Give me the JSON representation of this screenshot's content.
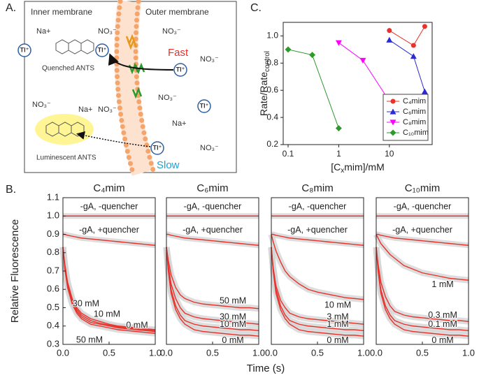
{
  "panel_labels": [
    "A.",
    "B.",
    "C."
  ],
  "diagram": {
    "inner_membrane": "Inner membrane",
    "outer_membrane": "Outer membrane",
    "fast": "Fast",
    "slow": "Slow",
    "quenched": "Quenched ANTS",
    "luminescent": "Luminescent ANTS",
    "na": [
      "Na+",
      "Na+",
      "Na+"
    ],
    "no3": [
      "NO₃⁻",
      "NO₃⁻",
      "NO₃⁻",
      "NO₃⁻",
      "NO₃⁻",
      "NO₃⁻",
      "NO₃⁻"
    ],
    "tl": [
      "Tl⁺",
      "Tl⁺",
      "Tl⁺",
      "Tl⁺",
      "Tl⁺"
    ]
  },
  "panel_b": {
    "ylabel": "Relative Fluorescence",
    "xlabel": "Time (s)"
  },
  "chart_data": [
    {
      "type": "line",
      "xscale": "log",
      "xlabel": [
        "[C",
        "x",
        "mim]/mM"
      ],
      "ylabel": [
        "Rate/Rate",
        "control"
      ],
      "xlim": [
        0.08,
        70
      ],
      "ylim": [
        0.2,
        1.1
      ],
      "xticks": [
        0.1,
        1,
        10
      ],
      "yticks": [
        0.2,
        0.4,
        0.6,
        0.8,
        {
          "value": 1,
          "label": "1.0"
        }
      ],
      "legend": "lower right",
      "series": [
        {
          "name": "C₄mim",
          "color": "#e8322b",
          "marker": "circle",
          "x": [
            10,
            30,
            50
          ],
          "values": [
            1.04,
            0.93,
            1.07
          ]
        },
        {
          "name": "C₆mim",
          "color": "#2a2ad6",
          "marker": "triangle-up",
          "x": [
            10,
            30,
            50
          ],
          "values": [
            0.97,
            0.85,
            0.59
          ]
        },
        {
          "name": "C₈mim",
          "color": "#ff00ff",
          "marker": "triangle-down",
          "x": [
            1,
            3,
            10
          ],
          "values": [
            0.95,
            0.82,
            0.52
          ]
        },
        {
          "name": "C₁₀mim",
          "color": "#2e9a2e",
          "marker": "diamond",
          "x": [
            0.1,
            0.3,
            1
          ],
          "values": [
            0.9,
            0.86,
            0.32
          ]
        }
      ]
    },
    {
      "type": "decay",
      "title": "C₄mim",
      "x": [
        0,
        0.02,
        0.05,
        0.1,
        0.15,
        0.2,
        0.3,
        0.4,
        0.5,
        0.6,
        0.7,
        0.8,
        0.9,
        1.0
      ],
      "xlim": [
        0,
        1
      ],
      "ylim": [
        0.3,
        1.1
      ],
      "xticks": [
        {
          "value": 0,
          "label": "0.0"
        },
        0.5,
        {
          "value": 1,
          "label": "1.0"
        }
      ],
      "yticks": [
        0.3,
        0.4,
        0.5,
        0.6,
        0.7,
        0.8,
        0.9,
        {
          "value": 1,
          "label": "1.0"
        },
        1.1
      ],
      "series": [
        {
          "name": "-gA, -quencher",
          "color": "#e8322b",
          "values": [
            1,
            1,
            1,
            1,
            1,
            1,
            1,
            1,
            1,
            1,
            1,
            1,
            1,
            1
          ]
        },
        {
          "name": "-gA, +quencher",
          "color": "#e8322b",
          "values": [
            0.9,
            0.9,
            0.895,
            0.89,
            0.885,
            0.88,
            0.875,
            0.87,
            0.865,
            0.86,
            0.855,
            0.85,
            0.845,
            0.84
          ]
        },
        {
          "name": "30 mM",
          "color": "#e8322b",
          "values": [
            0.83,
            0.74,
            0.64,
            0.55,
            0.5,
            0.47,
            0.44,
            0.425,
            0.41,
            0.4,
            0.395,
            0.39,
            0.385,
            0.38
          ]
        },
        {
          "name": "10 mM",
          "color": "#e8322b",
          "values": [
            0.83,
            0.73,
            0.63,
            0.54,
            0.49,
            0.46,
            0.43,
            0.415,
            0.405,
            0.395,
            0.39,
            0.385,
            0.38,
            0.375
          ]
        },
        {
          "name": "0 mM",
          "color": "#e8322b",
          "values": [
            0.83,
            0.72,
            0.62,
            0.53,
            0.48,
            0.45,
            0.42,
            0.41,
            0.4,
            0.39,
            0.385,
            0.38,
            0.375,
            0.37
          ]
        },
        {
          "name": "50 mM",
          "color": "#e8322b",
          "values": [
            0.83,
            0.71,
            0.61,
            0.52,
            0.47,
            0.44,
            0.41,
            0.4,
            0.39,
            0.38,
            0.375,
            0.37,
            0.365,
            0.36
          ]
        }
      ]
    },
    {
      "type": "decay",
      "title": "C₆mim",
      "x": [
        0,
        0.02,
        0.05,
        0.1,
        0.15,
        0.2,
        0.3,
        0.4,
        0.5,
        0.6,
        0.7,
        0.8,
        0.9,
        1.0
      ],
      "xlim": [
        0,
        1
      ],
      "ylim": [
        0.3,
        1.1
      ],
      "xticks": [
        {
          "value": 0,
          "label": "0.0"
        },
        0.5,
        {
          "value": 1,
          "label": "1.0"
        }
      ],
      "series": [
        {
          "name": "-gA, -quencher",
          "color": "#e8322b",
          "values": [
            1,
            1,
            1,
            1,
            1,
            1,
            1,
            1,
            1,
            1,
            1,
            1,
            1,
            1
          ]
        },
        {
          "name": "-gA, +quencher",
          "color": "#e8322b",
          "values": [
            0.9,
            0.9,
            0.895,
            0.89,
            0.885,
            0.88,
            0.875,
            0.87,
            0.865,
            0.86,
            0.855,
            0.85,
            0.845,
            0.84
          ]
        },
        {
          "name": "50 mM",
          "color": "#e8322b",
          "values": [
            0.83,
            0.76,
            0.68,
            0.61,
            0.57,
            0.55,
            0.53,
            0.52,
            0.515,
            0.51,
            0.505,
            0.5,
            0.5,
            0.495
          ]
        },
        {
          "name": "30 mM",
          "color": "#e8322b",
          "values": [
            0.83,
            0.73,
            0.63,
            0.55,
            0.5,
            0.47,
            0.45,
            0.44,
            0.435,
            0.43,
            0.425,
            0.42,
            0.415,
            0.41
          ]
        },
        {
          "name": "10 mM",
          "color": "#e8322b",
          "values": [
            0.83,
            0.71,
            0.6,
            0.51,
            0.46,
            0.43,
            0.41,
            0.4,
            0.395,
            0.39,
            0.385,
            0.38,
            0.38,
            0.375
          ]
        },
        {
          "name": "0 mM",
          "color": "#e8322b",
          "values": [
            0.83,
            0.7,
            0.58,
            0.49,
            0.44,
            0.41,
            0.38,
            0.37,
            0.365,
            0.36,
            0.355,
            0.35,
            0.35,
            0.345
          ]
        }
      ]
    },
    {
      "type": "decay",
      "title": "C₈mim",
      "x": [
        0,
        0.02,
        0.05,
        0.1,
        0.15,
        0.2,
        0.3,
        0.4,
        0.5,
        0.6,
        0.7,
        0.8,
        0.9,
        1.0
      ],
      "xlim": [
        0,
        1
      ],
      "ylim": [
        0.3,
        1.1
      ],
      "xticks": [
        {
          "value": 0,
          "label": "0.0"
        },
        0.5,
        {
          "value": 1,
          "label": "1.0"
        }
      ],
      "series": [
        {
          "name": "-gA, -quencher",
          "color": "#e8322b",
          "values": [
            1,
            1,
            1,
            1,
            1,
            1,
            1,
            1,
            1,
            1,
            1,
            1,
            1,
            1
          ]
        },
        {
          "name": "-gA, +quencher",
          "color": "#e8322b",
          "values": [
            0.9,
            0.9,
            0.895,
            0.89,
            0.885,
            0.88,
            0.875,
            0.87,
            0.865,
            0.86,
            0.855,
            0.85,
            0.845,
            0.84
          ]
        },
        {
          "name": "10 mM",
          "color": "#e8322b",
          "values": [
            0.9,
            0.86,
            0.81,
            0.75,
            0.7,
            0.67,
            0.63,
            0.6,
            0.585,
            0.575,
            0.565,
            0.555,
            0.55,
            0.545
          ]
        },
        {
          "name": "3 mM",
          "color": "#e8322b",
          "values": [
            0.83,
            0.72,
            0.62,
            0.54,
            0.5,
            0.47,
            0.45,
            0.44,
            0.435,
            0.43,
            0.425,
            0.42,
            0.415,
            0.41
          ]
        },
        {
          "name": "1 mM",
          "color": "#e8322b",
          "values": [
            0.83,
            0.71,
            0.6,
            0.51,
            0.46,
            0.43,
            0.41,
            0.4,
            0.395,
            0.39,
            0.385,
            0.38,
            0.38,
            0.375
          ]
        },
        {
          "name": "0 mM",
          "color": "#e8322b",
          "values": [
            0.83,
            0.7,
            0.58,
            0.49,
            0.44,
            0.41,
            0.38,
            0.37,
            0.365,
            0.36,
            0.355,
            0.35,
            0.35,
            0.345
          ]
        }
      ]
    },
    {
      "type": "decay",
      "title": "C₁₀mim",
      "x": [
        0,
        0.02,
        0.05,
        0.1,
        0.15,
        0.2,
        0.3,
        0.4,
        0.5,
        0.6,
        0.7,
        0.8,
        0.9,
        1.0
      ],
      "xlim": [
        0,
        1
      ],
      "ylim": [
        0.3,
        1.1
      ],
      "xticks": [
        {
          "value": 0,
          "label": "0.0"
        },
        0.5,
        {
          "value": 1,
          "label": "1.0"
        }
      ],
      "series": [
        {
          "name": "-gA, -quencher",
          "color": "#e8322b",
          "values": [
            1,
            1,
            1,
            1,
            1,
            1,
            1,
            1,
            1,
            1,
            1,
            1,
            1,
            1
          ]
        },
        {
          "name": "-gA, +quencher",
          "color": "#e8322b",
          "values": [
            0.9,
            0.9,
            0.895,
            0.89,
            0.885,
            0.88,
            0.875,
            0.87,
            0.865,
            0.86,
            0.855,
            0.85,
            0.845,
            0.84
          ]
        },
        {
          "name": "1 mM",
          "color": "#e8322b",
          "values": [
            0.9,
            0.88,
            0.85,
            0.82,
            0.79,
            0.77,
            0.73,
            0.71,
            0.69,
            0.68,
            0.67,
            0.66,
            0.655,
            0.65
          ]
        },
        {
          "name": "0.3 mM",
          "color": "#e8322b",
          "values": [
            0.83,
            0.74,
            0.64,
            0.56,
            0.51,
            0.48,
            0.46,
            0.45,
            0.445,
            0.44,
            0.435,
            0.43,
            0.43,
            0.425
          ]
        },
        {
          "name": "0.1 mM",
          "color": "#e8322b",
          "values": [
            0.83,
            0.71,
            0.6,
            0.51,
            0.46,
            0.43,
            0.41,
            0.4,
            0.395,
            0.39,
            0.385,
            0.38,
            0.38,
            0.375
          ]
        },
        {
          "name": "0 mM",
          "color": "#e8322b",
          "values": [
            0.83,
            0.7,
            0.58,
            0.49,
            0.44,
            0.41,
            0.38,
            0.37,
            0.365,
            0.36,
            0.355,
            0.35,
            0.35,
            0.345
          ]
        }
      ]
    }
  ]
}
